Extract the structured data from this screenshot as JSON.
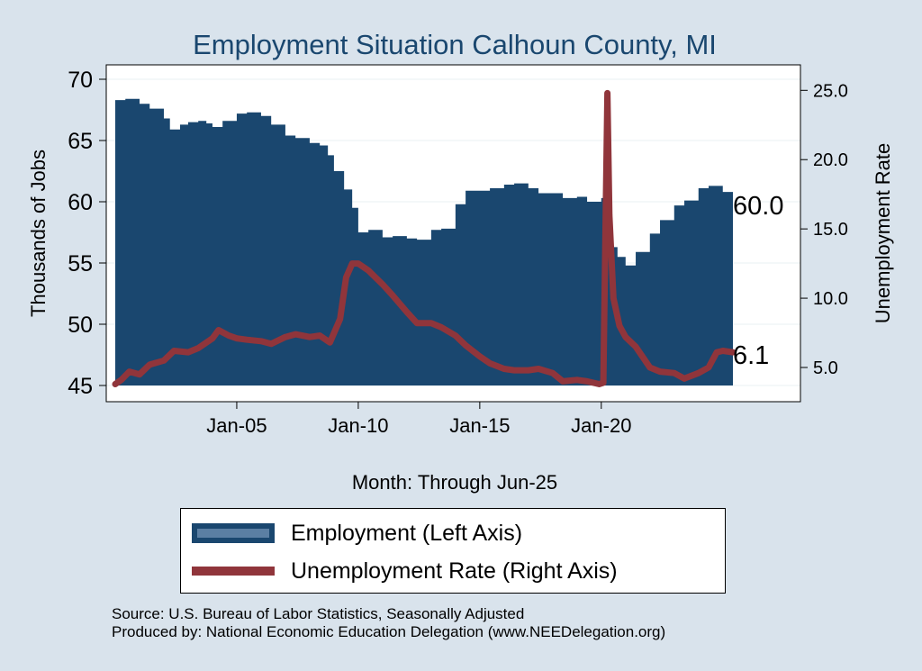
{
  "chart_data": {
    "type": "area+line",
    "title": "Employment Situation Calhoun  County, MI",
    "xlabel": "Month: Through Jun-25",
    "ylabel_left": "Thousands of Jobs",
    "ylabel_right": "Unemployment Rate",
    "x_ticks": [
      "Jan-05",
      "Jan-10",
      "Jan-15",
      "Jan-20"
    ],
    "y_left_ticks": [
      "45",
      "50",
      "55",
      "60",
      "65",
      "70"
    ],
    "y_right_ticks": [
      "5.0",
      "10.0",
      "15.0",
      "20.0",
      "25.0"
    ],
    "ylim_left": [
      45,
      70
    ],
    "ylim_right": [
      3.7,
      25.8
    ],
    "xlim": [
      "2000-01",
      "2025-06"
    ],
    "grid": "horizontal",
    "legend_position": "bottom",
    "end_labels": {
      "employment": "60.0",
      "unemployment": "6.1"
    },
    "series": [
      {
        "name": "Employment (Left Axis)",
        "kind": "area",
        "color": "#1a476f",
        "points": [
          [
            "2000-01",
            68.3
          ],
          [
            "2000-06",
            68.4
          ],
          [
            "2001-01",
            68.0
          ],
          [
            "2001-06",
            67.6
          ],
          [
            "2002-01",
            66.8
          ],
          [
            "2002-04",
            65.9
          ],
          [
            "2002-09",
            66.3
          ],
          [
            "2003-01",
            66.5
          ],
          [
            "2003-06",
            66.6
          ],
          [
            "2003-10",
            66.4
          ],
          [
            "2004-01",
            66.1
          ],
          [
            "2004-06",
            66.6
          ],
          [
            "2005-01",
            67.2
          ],
          [
            "2005-06",
            67.3
          ],
          [
            "2006-01",
            67.0
          ],
          [
            "2006-06",
            66.3
          ],
          [
            "2007-01",
            65.4
          ],
          [
            "2007-06",
            65.2
          ],
          [
            "2008-01",
            64.8
          ],
          [
            "2008-06",
            64.6
          ],
          [
            "2008-10",
            63.8
          ],
          [
            "2009-01",
            62.5
          ],
          [
            "2009-06",
            61.0
          ],
          [
            "2009-10",
            59.5
          ],
          [
            "2010-01",
            57.5
          ],
          [
            "2010-06",
            57.7
          ],
          [
            "2011-01",
            57.1
          ],
          [
            "2011-06",
            57.2
          ],
          [
            "2012-01",
            57.0
          ],
          [
            "2012-06",
            56.9
          ],
          [
            "2013-01",
            57.7
          ],
          [
            "2013-06",
            57.8
          ],
          [
            "2014-01",
            59.8
          ],
          [
            "2014-06",
            60.9
          ],
          [
            "2015-01",
            60.9
          ],
          [
            "2015-06",
            61.1
          ],
          [
            "2016-01",
            61.4
          ],
          [
            "2016-06",
            61.5
          ],
          [
            "2017-01",
            61.1
          ],
          [
            "2017-06",
            60.7
          ],
          [
            "2018-01",
            60.7
          ],
          [
            "2018-06",
            60.3
          ],
          [
            "2019-01",
            60.4
          ],
          [
            "2019-06",
            60.0
          ],
          [
            "2020-01",
            60.3
          ],
          [
            "2020-04",
            56.3
          ],
          [
            "2020-09",
            55.5
          ],
          [
            "2021-01",
            54.8
          ],
          [
            "2021-06",
            55.9
          ],
          [
            "2022-01",
            57.4
          ],
          [
            "2022-06",
            58.5
          ],
          [
            "2023-01",
            59.7
          ],
          [
            "2023-06",
            60.1
          ],
          [
            "2024-01",
            61.1
          ],
          [
            "2024-06",
            61.3
          ],
          [
            "2025-01",
            60.8
          ],
          [
            "2025-06",
            60.0
          ]
        ]
      },
      {
        "name": "Unemployment Rate (Right Axis)",
        "kind": "line",
        "color": "#90353b",
        "points": [
          [
            "2000-01",
            3.8
          ],
          [
            "2000-04",
            4.1
          ],
          [
            "2000-08",
            4.7
          ],
          [
            "2001-01",
            4.5
          ],
          [
            "2001-06",
            5.2
          ],
          [
            "2002-01",
            5.5
          ],
          [
            "2002-06",
            6.2
          ],
          [
            "2003-01",
            6.1
          ],
          [
            "2003-06",
            6.4
          ],
          [
            "2004-01",
            7.1
          ],
          [
            "2004-04",
            7.7
          ],
          [
            "2004-09",
            7.3
          ],
          [
            "2005-01",
            7.1
          ],
          [
            "2005-06",
            7.0
          ],
          [
            "2006-01",
            6.9
          ],
          [
            "2006-06",
            6.7
          ],
          [
            "2007-01",
            7.2
          ],
          [
            "2007-06",
            7.4
          ],
          [
            "2008-01",
            7.2
          ],
          [
            "2008-06",
            7.3
          ],
          [
            "2008-11",
            6.8
          ],
          [
            "2009-04",
            8.5
          ],
          [
            "2009-07",
            11.5
          ],
          [
            "2009-10",
            12.5
          ],
          [
            "2010-01",
            12.5
          ],
          [
            "2010-06",
            12.0
          ],
          [
            "2011-01",
            11.0
          ],
          [
            "2011-06",
            10.2
          ],
          [
            "2012-01",
            9.0
          ],
          [
            "2012-06",
            8.2
          ],
          [
            "2013-01",
            8.2
          ],
          [
            "2013-06",
            7.9
          ],
          [
            "2014-01",
            7.3
          ],
          [
            "2014-06",
            6.6
          ],
          [
            "2015-01",
            5.8
          ],
          [
            "2015-06",
            5.3
          ],
          [
            "2016-01",
            4.9
          ],
          [
            "2016-06",
            4.8
          ],
          [
            "2017-01",
            4.8
          ],
          [
            "2017-06",
            4.9
          ],
          [
            "2018-01",
            4.6
          ],
          [
            "2018-06",
            4.0
          ],
          [
            "2019-01",
            4.1
          ],
          [
            "2019-06",
            4.0
          ],
          [
            "2019-12",
            3.8
          ],
          [
            "2020-02",
            3.9
          ],
          [
            "2020-04",
            24.8
          ],
          [
            "2020-05",
            16.0
          ],
          [
            "2020-07",
            10.0
          ],
          [
            "2020-10",
            8.0
          ],
          [
            "2021-01",
            7.2
          ],
          [
            "2021-06",
            6.5
          ],
          [
            "2022-01",
            5.0
          ],
          [
            "2022-06",
            4.7
          ],
          [
            "2023-01",
            4.6
          ],
          [
            "2023-06",
            4.2
          ],
          [
            "2024-01",
            4.6
          ],
          [
            "2024-06",
            5.0
          ],
          [
            "2024-10",
            6.1
          ],
          [
            "2025-01",
            6.2
          ],
          [
            "2025-06",
            6.1
          ]
        ]
      }
    ]
  },
  "legend": {
    "employment": "Employment (Left Axis)",
    "unemployment": "Unemployment Rate (Right Axis)"
  },
  "source_line1": "Source: U.S. Bureau of Labor Statistics, Seasonally Adjusted",
  "source_line2": "Produced by: National Economic Education Delegation (www.NEEDelegation.org)"
}
